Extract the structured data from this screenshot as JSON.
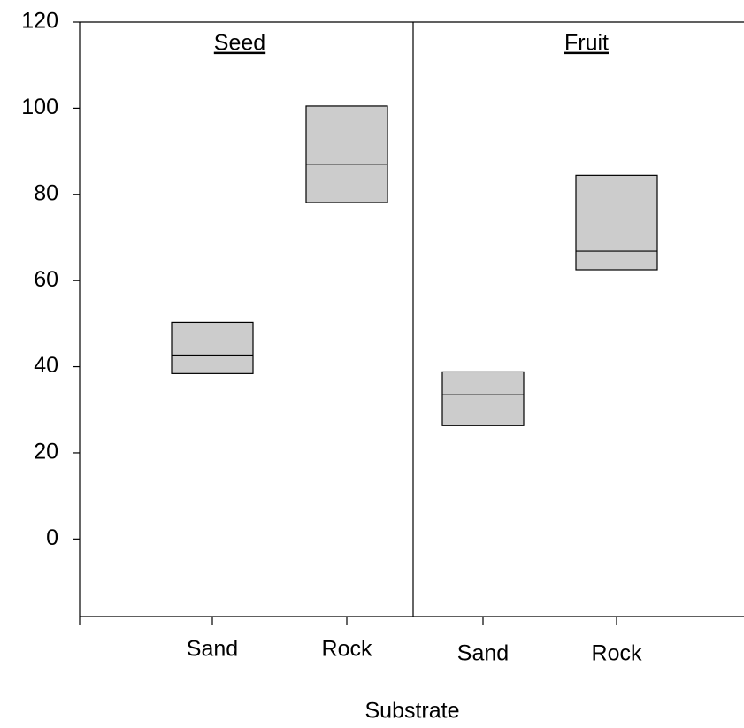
{
  "chart_data": {
    "type": "box",
    "x_label": "Substrate",
    "ylim": [
      -18,
      120
    ],
    "yticks": [
      0,
      20,
      40,
      60,
      80,
      100,
      120
    ],
    "color": "#cccccc",
    "panels": [
      {
        "title": "Seed",
        "categories": [
          "Sand",
          "Rock"
        ],
        "q1": [
          38.4,
          78.1
        ],
        "median": [
          42.7,
          86.9
        ],
        "q3": [
          50.3,
          100.5
        ]
      },
      {
        "title": "Fruit",
        "categories": [
          "Sand",
          "Rock"
        ],
        "q1": [
          26.3,
          62.5
        ],
        "median": [
          33.5,
          66.8
        ],
        "q3": [
          38.8,
          84.4
        ]
      }
    ]
  }
}
